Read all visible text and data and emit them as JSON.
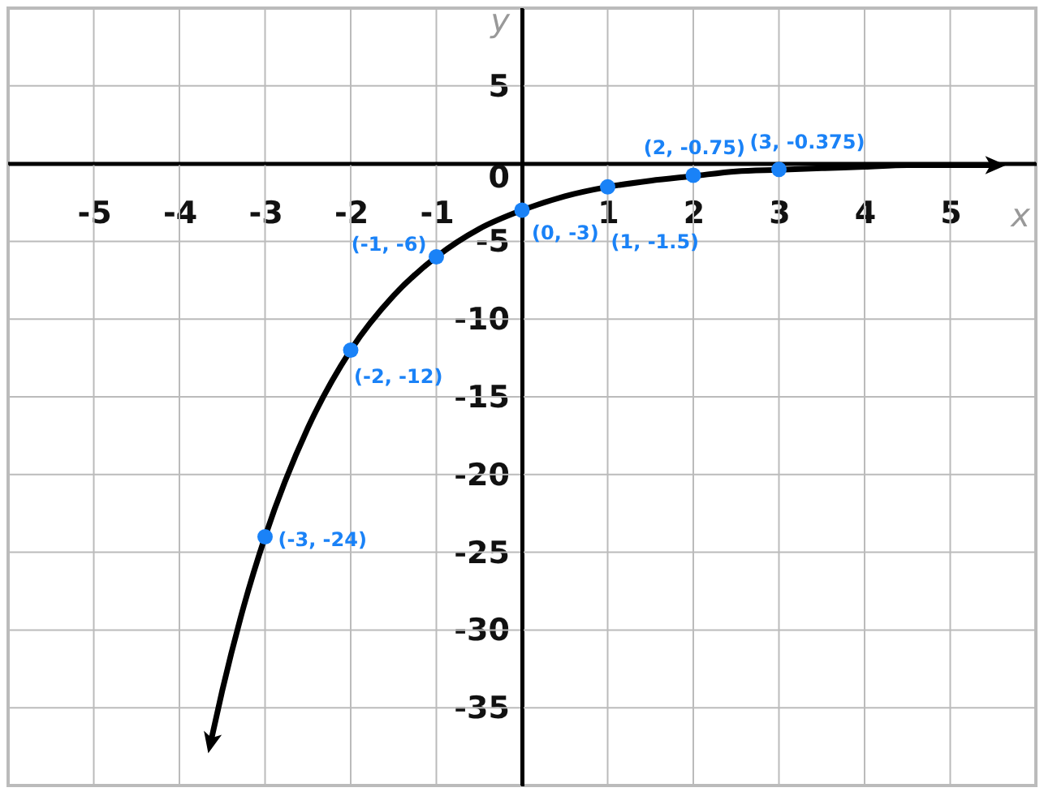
{
  "chart_data": {
    "type": "line",
    "xlabel": "x",
    "ylabel": "y",
    "xlim": [
      -6,
      6
    ],
    "ylim": [
      -40,
      10
    ],
    "xticks": [
      -5,
      -4,
      -3,
      -2,
      -1,
      1,
      2,
      3,
      4,
      5
    ],
    "yticks": [
      5,
      0,
      -5,
      -10,
      -15,
      -20,
      -25,
      -30,
      -35
    ],
    "grid": true,
    "series": [
      {
        "color": "#000000",
        "marker": "none",
        "line_style": "solid",
        "x": [
          -3.63,
          -3.5,
          -3.25,
          -3,
          -2.5,
          -2,
          -1.5,
          -1,
          -0.5,
          0,
          0.5,
          1,
          1.5,
          2,
          2.5,
          3,
          3.5,
          4,
          4.5,
          5,
          5.5
        ],
        "values": [
          -37.1,
          -33.9,
          -28.5,
          -24,
          -17.0,
          -12,
          -8.5,
          -6,
          -4.2,
          -3,
          -2.1,
          -1.5,
          -1.1,
          -0.8,
          -0.5,
          -0.4,
          -0.3,
          -0.2,
          -0.1,
          -0.1,
          -0.1
        ]
      },
      {
        "type": "scatter",
        "color": "#1a82f7",
        "marker": "circle",
        "x": [
          -3,
          -2,
          -1,
          0,
          1,
          2,
          3
        ],
        "values": [
          -24,
          -12,
          -6,
          -3,
          -1.5,
          -0.75,
          -0.375
        ]
      }
    ],
    "annotations": [
      {
        "text": "(-3, -24)",
        "x": -3,
        "y": -24
      },
      {
        "text": "(-2, -12)",
        "x": -2,
        "y": -12
      },
      {
        "text": "(-1, -6)",
        "x": -1,
        "y": -6
      },
      {
        "text": "(0, -3)",
        "x": 0,
        "y": -3
      },
      {
        "text": "(1, -1.5)",
        "x": 1,
        "y": -1.5
      },
      {
        "text": "(2, -0.75)",
        "x": 2,
        "y": -0.75
      },
      {
        "text": "(3, -0.375)",
        "x": 3,
        "y": -0.375
      }
    ]
  }
}
